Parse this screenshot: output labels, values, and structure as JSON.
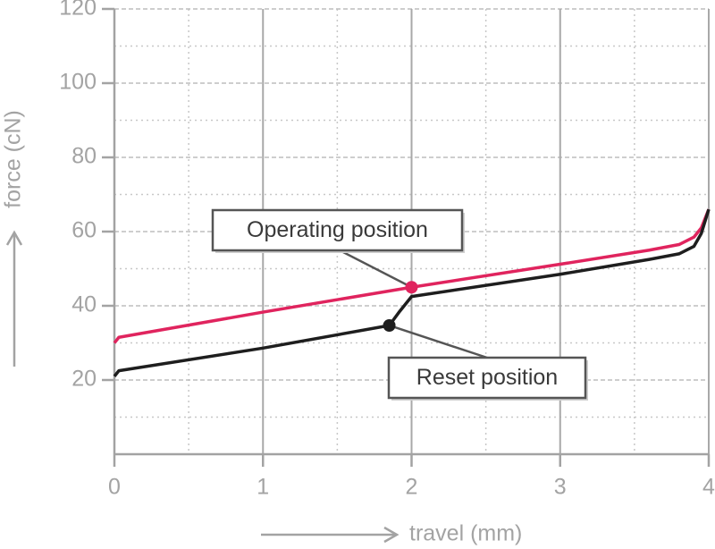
{
  "chart_data": {
    "type": "line",
    "xlabel": "travel (mm)",
    "ylabel": "force (cN)",
    "xlim": [
      0,
      4
    ],
    "ylim": [
      0,
      120
    ],
    "xticks": [
      0,
      1,
      2,
      3,
      4
    ],
    "yticks": [
      20,
      40,
      60,
      80,
      100,
      120
    ],
    "minor_xticks": [
      0.5,
      1.5,
      2.5,
      3.5
    ],
    "minor_yticks": [
      10,
      30,
      50,
      70,
      90,
      110
    ],
    "grid": true,
    "series": [
      {
        "color": "#e0245e",
        "x": [
          0,
          0.03,
          1,
          2,
          3,
          3.6,
          3.8,
          3.9,
          3.95,
          4
        ],
        "values": [
          30,
          31.5,
          38.3,
          45,
          51.2,
          55,
          56.5,
          58.5,
          61,
          66
        ]
      },
      {
        "color": "#1e1e1e",
        "x": [
          0,
          0.03,
          1,
          1.85,
          1.92,
          2,
          3,
          3.6,
          3.8,
          3.9,
          3.95,
          4
        ],
        "values": [
          21,
          22.5,
          28.6,
          34.7,
          38.5,
          42.5,
          48.5,
          52.5,
          54,
          56,
          59.5,
          66
        ]
      }
    ],
    "annotations": [
      {
        "text": "Operating position",
        "x": 2,
        "y": 45,
        "color": "#e0245e"
      },
      {
        "text": "Reset position",
        "x": 1.85,
        "y": 34.7,
        "color": "#1e1e1e"
      }
    ]
  }
}
